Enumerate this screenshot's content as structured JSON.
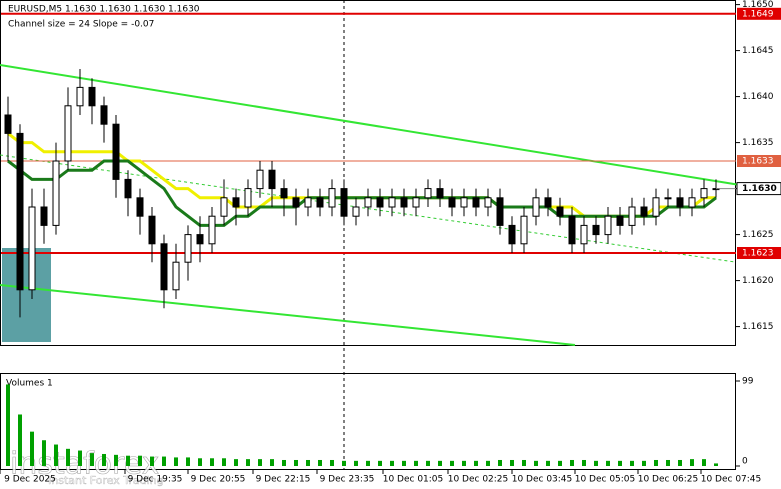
{
  "chart_data": {
    "type": "candlestick",
    "title": "EURUSD,M5  1.1630 1.1630 1.1630 1.1630",
    "subtitle": "Channel size = 24 Slope = -0.07",
    "open": [
      1.1638,
      1.1636,
      1.1619,
      1.1628,
      1.1626,
      1.1633,
      1.1639,
      1.1641,
      1.1639,
      1.1637,
      1.1631,
      1.1629,
      1.1627,
      1.1624,
      1.1619,
      1.1622,
      1.1625,
      1.1624,
      1.1627,
      1.1629,
      1.1628,
      1.163,
      1.1632,
      1.163,
      1.1629,
      1.1628,
      1.1629,
      1.1628,
      1.163,
      1.1627,
      1.1628,
      1.1629,
      1.1628,
      1.1629,
      1.1628,
      1.1629,
      1.163,
      1.1629,
      1.1628,
      1.1629,
      1.1628,
      1.1629,
      1.1626,
      1.1624,
      1.1627,
      1.1629,
      1.1628,
      1.1627,
      1.1624,
      1.1626,
      1.1625,
      1.1627,
      1.1626,
      1.1628,
      1.1627,
      1.1629,
      1.1629,
      1.1628,
      1.1629,
      1.163
    ],
    "high": [
      1.164,
      1.1637,
      1.163,
      1.163,
      1.1635,
      1.1641,
      1.1643,
      1.1642,
      1.164,
      1.1638,
      1.1632,
      1.163,
      1.1628,
      1.1625,
      1.1624,
      1.1626,
      1.1627,
      1.1628,
      1.1631,
      1.163,
      1.1631,
      1.1633,
      1.1633,
      1.1631,
      1.163,
      1.163,
      1.163,
      1.1631,
      1.1631,
      1.1629,
      1.163,
      1.163,
      1.163,
      1.163,
      1.163,
      1.1631,
      1.1631,
      1.163,
      1.163,
      1.163,
      1.163,
      1.163,
      1.1627,
      1.1628,
      1.163,
      1.163,
      1.1629,
      1.1628,
      1.1627,
      1.1627,
      1.1628,
      1.1628,
      1.1629,
      1.1629,
      1.163,
      1.163,
      1.163,
      1.163,
      1.1631,
      1.1631
    ],
    "low": [
      1.1633,
      1.1616,
      1.1618,
      1.1624,
      1.1625,
      1.1632,
      1.1638,
      1.1637,
      1.1635,
      1.1629,
      1.1627,
      1.1625,
      1.1622,
      1.1617,
      1.1618,
      1.162,
      1.1622,
      1.1623,
      1.1626,
      1.1626,
      1.1627,
      1.1629,
      1.1628,
      1.1627,
      1.1626,
      1.1627,
      1.1627,
      1.1627,
      1.1626,
      1.1626,
      1.1627,
      1.1627,
      1.1627,
      1.1627,
      1.1627,
      1.1628,
      1.1628,
      1.1627,
      1.1627,
      1.1627,
      1.1627,
      1.1625,
      1.1623,
      1.1623,
      1.1626,
      1.1627,
      1.1626,
      1.1623,
      1.1623,
      1.1624,
      1.1624,
      1.1625,
      1.1625,
      1.1626,
      1.1626,
      1.1628,
      1.1627,
      1.1627,
      1.1628,
      1.1629
    ],
    "close": [
      1.1636,
      1.1619,
      1.1628,
      1.1626,
      1.1633,
      1.1639,
      1.1641,
      1.1639,
      1.1637,
      1.1631,
      1.1629,
      1.1627,
      1.1624,
      1.1619,
      1.1622,
      1.1625,
      1.1624,
      1.1627,
      1.1629,
      1.1628,
      1.163,
      1.1632,
      1.163,
      1.1629,
      1.1628,
      1.1629,
      1.1628,
      1.163,
      1.1627,
      1.1628,
      1.1629,
      1.1628,
      1.1629,
      1.1628,
      1.1629,
      1.163,
      1.1629,
      1.1628,
      1.1629,
      1.1628,
      1.1629,
      1.1626,
      1.1624,
      1.1627,
      1.1629,
      1.1628,
      1.1627,
      1.1624,
      1.1626,
      1.1625,
      1.1627,
      1.1626,
      1.1628,
      1.1627,
      1.1629,
      1.1629,
      1.1628,
      1.1629,
      1.163,
      1.163
    ],
    "overlays": [
      {
        "color": "#f0f000",
        "values": [
          1.1636,
          1.1635,
          1.1635,
          1.1634,
          1.1634,
          1.1634,
          1.1634,
          1.1634,
          1.1634,
          1.1634,
          1.1633,
          1.1633,
          1.1632,
          1.1631,
          1.163,
          1.163,
          1.1629,
          1.1629,
          1.1629,
          1.1628,
          1.1628,
          1.1628,
          1.1629,
          1.1629,
          1.1629,
          1.1629,
          1.1629,
          1.1629,
          1.1629,
          1.1629,
          1.1629,
          1.1629,
          1.1629,
          1.1629,
          1.1629,
          1.1629,
          1.1629,
          1.1629,
          1.1629,
          1.1629,
          1.1629,
          1.1628,
          1.1628,
          1.1628,
          1.1628,
          1.1628,
          1.1628,
          1.1628,
          1.1627,
          1.1627,
          1.1627,
          1.1627,
          1.1627,
          1.1627,
          1.1628,
          1.1628,
          1.1628,
          1.1628,
          1.1629,
          1.1629
        ]
      },
      {
        "color": "#1a7a1a",
        "values": [
          1.1633,
          1.1632,
          1.1631,
          1.1631,
          1.1631,
          1.1632,
          1.1632,
          1.1632,
          1.1633,
          1.1633,
          1.1633,
          1.1632,
          1.1631,
          1.163,
          1.1628,
          1.1627,
          1.1626,
          1.1626,
          1.1626,
          1.1627,
          1.1627,
          1.1628,
          1.1628,
          1.1628,
          1.1628,
          1.1629,
          1.1629,
          1.1629,
          1.1629,
          1.1629,
          1.1629,
          1.1629,
          1.1629,
          1.1629,
          1.1629,
          1.1629,
          1.1629,
          1.1629,
          1.1629,
          1.1629,
          1.1629,
          1.1628,
          1.1628,
          1.1628,
          1.1628,
          1.1628,
          1.1627,
          1.1627,
          1.1627,
          1.1627,
          1.1627,
          1.1627,
          1.1627,
          1.1627,
          1.1627,
          1.1628,
          1.1628,
          1.1628,
          1.1628,
          1.1629
        ]
      }
    ],
    "candle_up": "#ffffff",
    "candle_down": "#000000",
    "ylim": [
      1.1613,
      1.16505
    ],
    "yticks": [
      {
        "value": 1.165,
        "label": "1.1650"
      },
      1.1645,
      {
        "value": 1.164,
        "label": "1.1640"
      },
      1.1635,
      {
        "value": 1.163,
        "label": "1.1630"
      },
      1.1625,
      {
        "value": 1.162,
        "label": "1.1620"
      },
      1.1615
    ],
    "levels": [
      {
        "value": 1.1649,
        "label": "1.1649",
        "color": "#e00000"
      },
      {
        "value": 1.1633,
        "label": "1.1633",
        "color": "#e06040"
      },
      {
        "value": 1.1623,
        "label": "1.1623",
        "color": "#e00000"
      }
    ],
    "current": {
      "value": 1.163,
      "label": "1.1630"
    },
    "x_labels": [
      "9 Dec 2025",
      "9 Dec 19:35",
      "9 Dec 20:55",
      "9 Dec 22:15",
      "9 Dec 23:35",
      "10 Dec 01:05",
      "10 Dec 02:25",
      "10 Dec 03:45",
      "10 Dec 05:05",
      "10 Dec 06:25",
      "10 Dec 07:45"
    ],
    "volume": {
      "title": "Volumes 1",
      "color": "#00a000",
      "values": [
        95,
        60,
        40,
        30,
        25,
        20,
        18,
        15,
        14,
        13,
        12,
        12,
        11,
        11,
        10,
        10,
        9,
        9,
        9,
        8,
        8,
        8,
        8,
        7,
        7,
        7,
        7,
        7,
        6,
        6,
        6,
        6,
        6,
        6,
        6,
        6,
        6,
        6,
        6,
        6,
        6,
        7,
        7,
        7,
        6,
        6,
        6,
        7,
        7,
        6,
        6,
        6,
        6,
        6,
        7,
        7,
        7,
        8,
        8,
        3
      ],
      "ylim": [
        0,
        99
      ],
      "yticks": [
        99,
        0
      ]
    },
    "watermark": {
      "brand": "instaforex",
      "tagline": "Instant Forex Trading"
    }
  }
}
